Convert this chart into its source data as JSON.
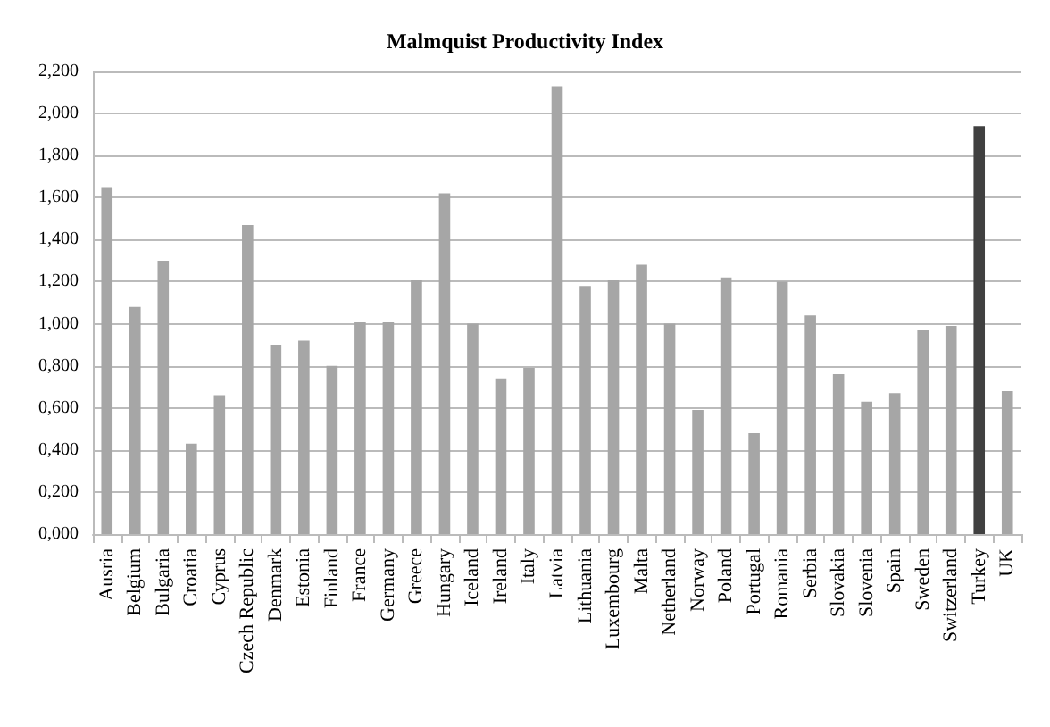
{
  "chart_data": {
    "type": "bar",
    "title": "Malmquist Productivity Index",
    "categories": [
      "Ausria",
      "Belgium",
      "Bulgaria",
      "Croatia",
      "Cyprus",
      "Czech Republic",
      "Denmark",
      "Estonia",
      "Finland",
      "France",
      "Germany",
      "Greece",
      "Hungary",
      "Iceland",
      "Ireland",
      "Italy",
      "Latvia",
      "Lithuania",
      "Luxembourg",
      "Malta",
      "Netherland",
      "Norway",
      "Poland",
      "Portugal",
      "Romania",
      "Serbia",
      "Slovakia",
      "Slovenia",
      "Spain",
      "Sweden",
      "Switzerland",
      "Turkey",
      "UK"
    ],
    "values": [
      1.65,
      1.08,
      1.3,
      0.43,
      0.66,
      1.47,
      0.9,
      0.92,
      0.8,
      1.01,
      1.01,
      1.21,
      1.62,
      1.0,
      0.74,
      0.79,
      2.13,
      1.18,
      1.21,
      1.28,
      1.0,
      0.59,
      1.22,
      0.48,
      1.2,
      1.04,
      0.76,
      0.63,
      0.67,
      0.97,
      0.99,
      1.94,
      0.68
    ],
    "colors": [
      "#a6a6a6",
      "#a6a6a6",
      "#a6a6a6",
      "#a6a6a6",
      "#a6a6a6",
      "#a6a6a6",
      "#a6a6a6",
      "#a6a6a6",
      "#a6a6a6",
      "#a6a6a6",
      "#a6a6a6",
      "#a6a6a6",
      "#a6a6a6",
      "#a6a6a6",
      "#a6a6a6",
      "#a6a6a6",
      "#a6a6a6",
      "#a6a6a6",
      "#a6a6a6",
      "#a6a6a6",
      "#a6a6a6",
      "#a6a6a6",
      "#a6a6a6",
      "#a6a6a6",
      "#a6a6a6",
      "#a6a6a6",
      "#a6a6a6",
      "#a6a6a6",
      "#a6a6a6",
      "#a6a6a6",
      "#a6a6a6",
      "#404040",
      "#a6a6a6"
    ],
    "ylim": [
      0,
      2.2
    ],
    "yticks": [
      {
        "value": 0,
        "label": "0,000"
      },
      {
        "value": 0.2,
        "label": "0,200"
      },
      {
        "value": 0.4,
        "label": "0,400"
      },
      {
        "value": 0.6,
        "label": "0,600"
      },
      {
        "value": 0.8,
        "label": "0,800"
      },
      {
        "value": 1.0,
        "label": "1,000"
      },
      {
        "value": 1.2,
        "label": "1,200"
      },
      {
        "value": 1.4,
        "label": "1,400"
      },
      {
        "value": 1.6,
        "label": "1,600"
      },
      {
        "value": 1.8,
        "label": "1,800"
      },
      {
        "value": 2.0,
        "label": "2,000"
      },
      {
        "value": 2.2,
        "label": "2,200"
      }
    ],
    "grid": "y"
  }
}
